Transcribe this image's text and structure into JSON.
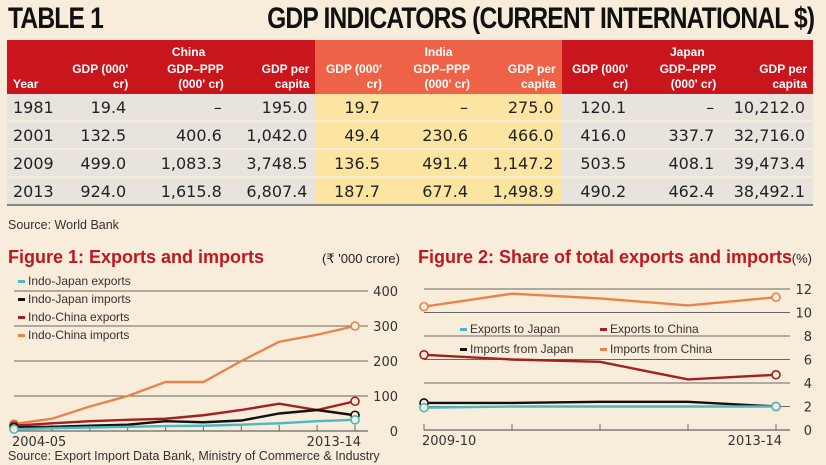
{
  "table": {
    "label": "TABLE 1",
    "title": "GDP INDICATORS (CURRENT INTERNATIONAL $)",
    "year_header": "Year",
    "groups": [
      "China",
      "India",
      "Japan"
    ],
    "sub_headers": [
      "GDP (000' cr)",
      "GDP–PPP (000' cr)",
      "GDP per capita"
    ],
    "rows": [
      {
        "year": "1981",
        "china": [
          "19.4",
          "–",
          "195.0"
        ],
        "india": [
          "19.7",
          "–",
          "275.0"
        ],
        "japan": [
          "120.1",
          "–",
          "10,212.0"
        ]
      },
      {
        "year": "2001",
        "china": [
          "132.5",
          "400.6",
          "1,042.0"
        ],
        "india": [
          "49.4",
          "230.6",
          "466.0"
        ],
        "japan": [
          "416.0",
          "337.7",
          "32,716.0"
        ]
      },
      {
        "year": "2009",
        "china": [
          "499.0",
          "1,083.3",
          "3,748.5"
        ],
        "india": [
          "136.5",
          "491.4",
          "1,147.2"
        ],
        "japan": [
          "503.5",
          "408.1",
          "39,473.4"
        ]
      },
      {
        "year": "2013",
        "china": [
          "924.0",
          "1,615.8",
          "6,807.4"
        ],
        "india": [
          "187.7",
          "677.4",
          "1,498.9"
        ],
        "japan": [
          "490.2",
          "462.4",
          "38,492.1"
        ]
      }
    ],
    "source": "Source: World Bank",
    "colors": {
      "china_header": "#c9161d",
      "india_header": "#ee6347",
      "japan_header": "#c9161d",
      "india_cells": "#fbe5a0",
      "other_cells": "#e8e4dd"
    }
  },
  "chart_data": [
    {
      "type": "line",
      "title": "Figure 1: Exports and imports",
      "unit": "(₹ '000 crore)",
      "x_labels": [
        "2004-05",
        "2013-14"
      ],
      "x": [
        "2004-05",
        "2005-06",
        "2006-07",
        "2007-08",
        "2008-09",
        "2009-10",
        "2010-11",
        "2011-12",
        "2012-13",
        "2013-14"
      ],
      "ylim": [
        0,
        400
      ],
      "yticks": [
        0,
        100,
        200,
        300,
        400
      ],
      "grid": true,
      "legend": "top-left",
      "series": [
        {
          "name": "Indo-Japan exports",
          "color": "#4bb8c4",
          "values": [
            5,
            8,
            10,
            12,
            14,
            15,
            18,
            22,
            28,
            32
          ]
        },
        {
          "name": "Indo-Japan imports",
          "color": "#111111",
          "values": [
            10,
            12,
            15,
            18,
            28,
            25,
            30,
            50,
            60,
            45
          ]
        },
        {
          "name": "Indo-China exports",
          "color": "#a3201e",
          "values": [
            15,
            22,
            28,
            32,
            35,
            45,
            60,
            78,
            60,
            85
          ]
        },
        {
          "name": "Indo-China imports",
          "color": "#e8844a",
          "values": [
            20,
            35,
            70,
            100,
            140,
            140,
            200,
            255,
            275,
            300
          ]
        }
      ],
      "source": "Source: Export Import Data Bank, Ministry of Commerce & Industry"
    },
    {
      "type": "line",
      "title": "Figure 2: Share of total exports and imports",
      "unit": "(%)",
      "x_labels": [
        "2009-10",
        "2013-14"
      ],
      "x": [
        "2009-10",
        "2010-11",
        "2011-12",
        "2012-13",
        "2013-14"
      ],
      "ylim": [
        0,
        12
      ],
      "yticks": [
        0,
        2,
        4,
        6,
        8,
        10,
        12
      ],
      "grid": true,
      "legend": "center",
      "series": [
        {
          "name": "Exports to Japan",
          "color": "#4bb8c4",
          "values": [
            1.9,
            2.0,
            2.0,
            2.0,
            2.0
          ]
        },
        {
          "name": "Exports to China",
          "color": "#a3201e",
          "values": [
            6.4,
            6.0,
            5.8,
            4.3,
            4.7
          ]
        },
        {
          "name": "Imports from Japan",
          "color": "#111111",
          "values": [
            2.3,
            2.3,
            2.4,
            2.4,
            2.0
          ]
        },
        {
          "name": "Imports from China",
          "color": "#e8844a",
          "values": [
            10.5,
            11.6,
            11.2,
            10.6,
            11.3
          ]
        }
      ]
    }
  ]
}
